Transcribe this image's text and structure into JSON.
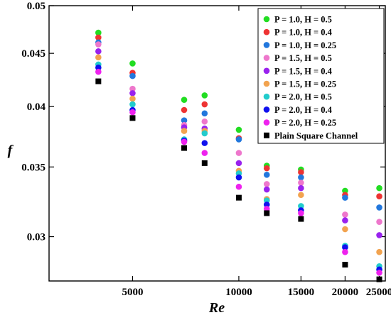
{
  "chart_data": {
    "type": "scatter",
    "xlabel": "Re",
    "ylabel": "f",
    "x_scale": "log",
    "y_scale": "log",
    "xlim": [
      2900,
      26000
    ],
    "ylim": [
      0.0272,
      0.05
    ],
    "x_ticks": [
      5000,
      10000,
      15000,
      20000,
      25000
    ],
    "x_tick_labels": [
      "5000",
      "10000",
      "15000",
      "20000",
      "25000"
    ],
    "y_ticks": [
      0.03,
      0.035,
      0.04,
      0.045,
      0.05
    ],
    "y_tick_labels": [
      "0.03",
      "0.035",
      "0.04",
      "0.045",
      "0.05"
    ],
    "grid": false,
    "legend_position": "top-right",
    "x": [
      4000,
      5000,
      7000,
      8000,
      10000,
      12000,
      15000,
      20000,
      25000
    ],
    "series": [
      {
        "name": "P = 1.0, H = 0.5",
        "color": "#22dd22",
        "marker": "circle",
        "values": [
          0.0471,
          0.044,
          0.0406,
          0.041,
          0.038,
          0.0351,
          0.0348,
          0.0332,
          0.0334
        ]
      },
      {
        "name": "P = 1.0, H = 0.4",
        "color": "#ee3333",
        "marker": "circle",
        "values": [
          0.0466,
          0.0431,
          0.0397,
          0.0402,
          0.0373,
          0.0349,
          0.0346,
          0.0329,
          0.0328
        ]
      },
      {
        "name": "P = 1.0, H = 0.25",
        "color": "#2277dd",
        "marker": "circle",
        "values": [
          0.0461,
          0.0428,
          0.0388,
          0.0394,
          0.0372,
          0.0344,
          0.0342,
          0.0327,
          0.032
        ]
      },
      {
        "name": "P = 1.5, H = 0.5",
        "color": "#ee77cc",
        "marker": "circle",
        "values": [
          0.0459,
          0.0416,
          0.0384,
          0.0387,
          0.0361,
          0.0337,
          0.0338,
          0.0315,
          0.031
        ]
      },
      {
        "name": "P = 1.5, H = 0.4",
        "color": "#9922ee",
        "marker": "circle",
        "values": [
          0.0452,
          0.0412,
          0.0382,
          0.0381,
          0.0353,
          0.0333,
          0.0334,
          0.0311,
          0.0301
        ]
      },
      {
        "name": "P = 1.5, H = 0.25",
        "color": "#f2a34f",
        "marker": "circle",
        "values": [
          0.0446,
          0.0407,
          0.0379,
          0.0379,
          0.0347,
          0.0326,
          0.0329,
          0.0305,
          0.029
        ]
      },
      {
        "name": "P = 2.0, H = 0.5",
        "color": "#22cccc",
        "marker": "circle",
        "values": [
          0.0439,
          0.0402,
          0.0372,
          0.0377,
          0.0345,
          0.0325,
          0.0321,
          0.0294,
          0.0281
        ]
      },
      {
        "name": "P = 2.0, H = 0.4",
        "color": "#1111ee",
        "marker": "circle",
        "values": [
          0.0436,
          0.0397,
          0.0371,
          0.0369,
          0.0342,
          0.0322,
          0.0318,
          0.0293,
          0.0279
        ]
      },
      {
        "name": "P = 2.0, H = 0.25",
        "color": "#ee22ee",
        "marker": "circle",
        "values": [
          0.0432,
          0.0395,
          0.037,
          0.0361,
          0.0335,
          0.0319,
          0.0316,
          0.029,
          0.0277
        ]
      },
      {
        "name": "Plain Square Channel",
        "color": "#000000",
        "marker": "square",
        "values": [
          0.0423,
          0.039,
          0.0365,
          0.0353,
          0.0327,
          0.0316,
          0.0312,
          0.0282,
          0.0273
        ]
      }
    ]
  }
}
